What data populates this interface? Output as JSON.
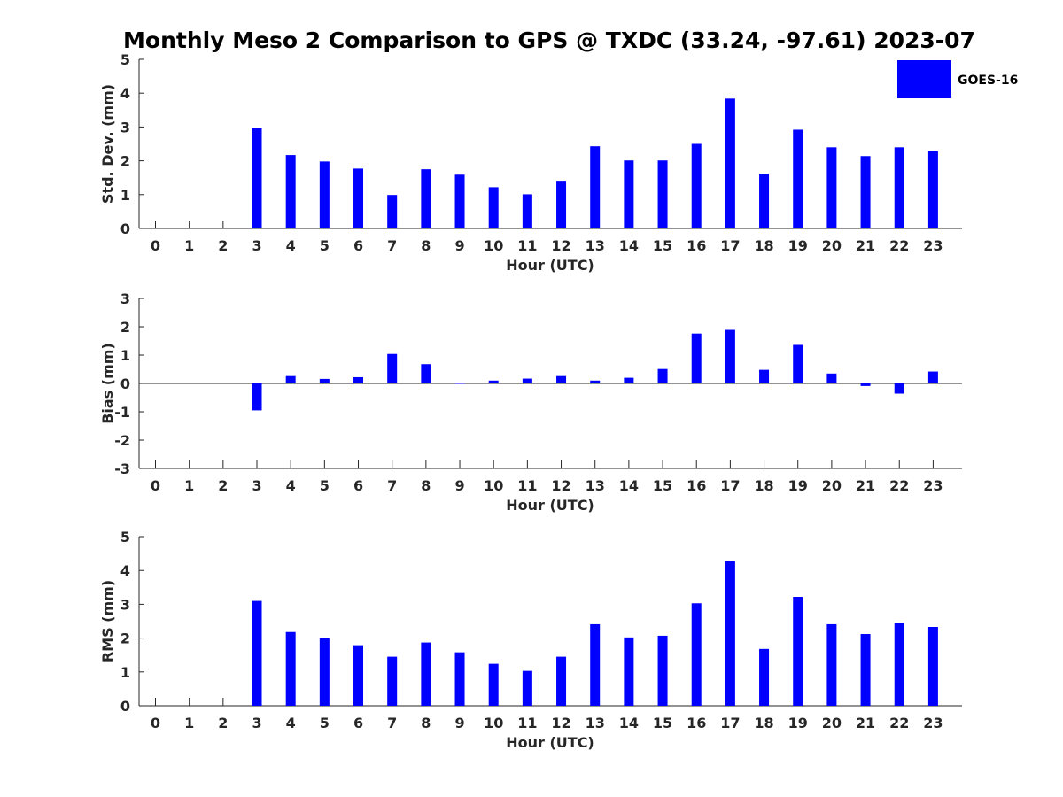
{
  "figure_title": "Monthly Meso 2 Comparison to GPS @ TXDC (33.24, -97.61) 2023-07",
  "legend": {
    "label": "GOES-16",
    "color": "#0000ff"
  },
  "chart_data": [
    {
      "type": "bar",
      "title": "Monthly Meso 2 Comparison to GPS @ TXDC (33.24, -97.61) 2023-07",
      "xlabel": "Hour (UTC)",
      "ylabel": "Std. Dev. (mm)",
      "ylim": [
        0,
        5
      ],
      "yticks": [
        0,
        1,
        2,
        3,
        4,
        5
      ],
      "categories": [
        "0",
        "1",
        "2",
        "3",
        "4",
        "5",
        "6",
        "7",
        "8",
        "9",
        "10",
        "11",
        "12",
        "13",
        "14",
        "15",
        "16",
        "17",
        "18",
        "19",
        "20",
        "21",
        "22",
        "23"
      ],
      "series": [
        {
          "name": "GOES-16",
          "color": "#0000ff",
          "values": [
            null,
            null,
            null,
            2.97,
            2.17,
            1.98,
            1.77,
            0.99,
            1.75,
            1.59,
            1.22,
            1.01,
            1.41,
            2.43,
            2.01,
            2.01,
            2.5,
            3.84,
            1.62,
            2.92,
            2.4,
            2.14,
            2.4,
            2.29
          ]
        }
      ]
    },
    {
      "type": "bar",
      "xlabel": "Hour (UTC)",
      "ylabel": "Bias (mm)",
      "ylim": [
        -3,
        3
      ],
      "yticks": [
        -3,
        -2,
        -1,
        0,
        1,
        2,
        3
      ],
      "categories": [
        "0",
        "1",
        "2",
        "3",
        "4",
        "5",
        "6",
        "7",
        "8",
        "9",
        "10",
        "11",
        "12",
        "13",
        "14",
        "15",
        "16",
        "17",
        "18",
        "19",
        "20",
        "21",
        "22",
        "23"
      ],
      "series": [
        {
          "name": "GOES-16",
          "color": "#0000ff",
          "values": [
            null,
            null,
            null,
            -0.95,
            0.26,
            0.16,
            0.22,
            1.04,
            0.68,
            0.0,
            0.1,
            0.17,
            0.26,
            0.1,
            0.2,
            0.51,
            1.76,
            1.89,
            0.48,
            1.36,
            0.35,
            -0.09,
            -0.36,
            0.42
          ]
        }
      ]
    },
    {
      "type": "bar",
      "xlabel": "Hour (UTC)",
      "ylabel": "RMS (mm)",
      "ylim": [
        0,
        5
      ],
      "yticks": [
        0,
        1,
        2,
        3,
        4,
        5
      ],
      "categories": [
        "0",
        "1",
        "2",
        "3",
        "4",
        "5",
        "6",
        "7",
        "8",
        "9",
        "10",
        "11",
        "12",
        "13",
        "14",
        "15",
        "16",
        "17",
        "18",
        "19",
        "20",
        "21",
        "22",
        "23"
      ],
      "series": [
        {
          "name": "GOES-16",
          "color": "#0000ff",
          "values": [
            null,
            null,
            null,
            3.1,
            2.18,
            2.0,
            1.79,
            1.45,
            1.87,
            1.58,
            1.24,
            1.03,
            1.45,
            2.41,
            2.02,
            2.07,
            3.03,
            4.27,
            1.68,
            3.22,
            2.41,
            2.12,
            2.44,
            2.33
          ]
        }
      ]
    }
  ]
}
